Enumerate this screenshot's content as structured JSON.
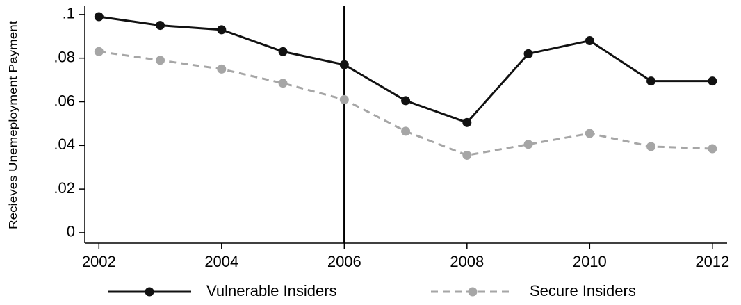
{
  "chart_data": {
    "type": "line",
    "y_label": "Recieves Unemeployment Payment",
    "x": [
      2002,
      2003,
      2004,
      2005,
      2006,
      2007,
      2008,
      2009,
      2010,
      2011,
      2012
    ],
    "series": [
      {
        "name": "Vulnerable Insiders",
        "color": "#111111",
        "line_style": "solid",
        "values": [
          0.099,
          0.095,
          0.093,
          0.083,
          0.077,
          0.0605,
          0.0505,
          0.082,
          0.088,
          0.0695,
          0.0695
        ]
      },
      {
        "name": "Secure Insiders",
        "color": "#a6a6a6",
        "line_style": "dashed",
        "values": [
          0.083,
          0.079,
          0.075,
          0.0685,
          0.061,
          0.0465,
          0.0355,
          0.0405,
          0.0455,
          0.0395,
          0.0385
        ]
      }
    ],
    "vlines": [
      2006
    ],
    "xlim": [
      2001.77,
      2012.24
    ],
    "ylim": [
      -0.0048,
      0.1041
    ],
    "xticks": [
      2002,
      2004,
      2006,
      2008,
      2010,
      2012
    ],
    "yticks": [
      0,
      {
        "value": 0.02,
        "label": ".02"
      },
      {
        "value": 0.04,
        "label": ".04"
      },
      {
        "value": 0.06,
        "label": ".06"
      },
      {
        "value": 0.08,
        "label": ".08"
      },
      {
        "value": 0.1,
        "label": ".1"
      }
    ],
    "grid": false,
    "legend": "bottom"
  }
}
